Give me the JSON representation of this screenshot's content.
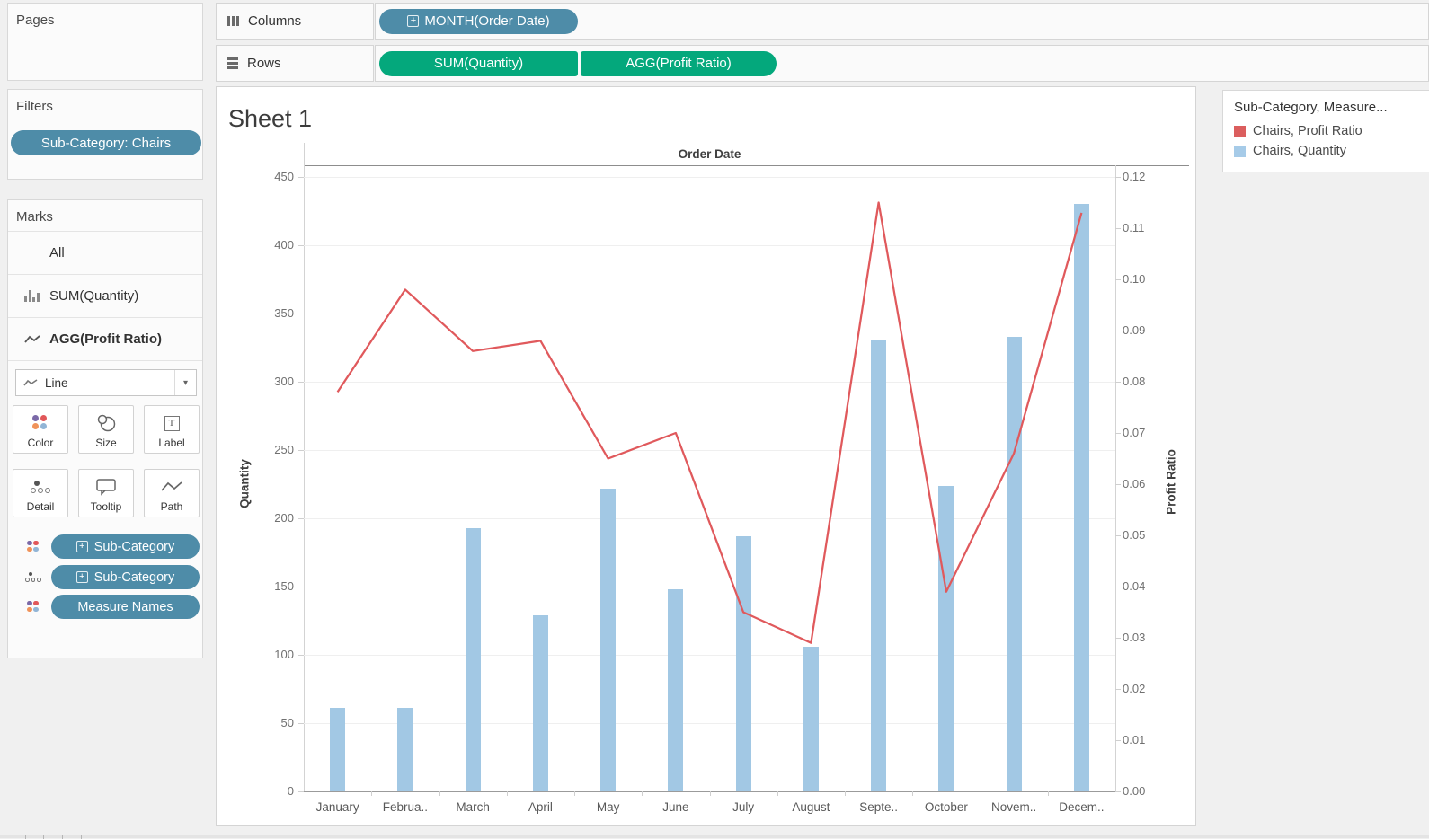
{
  "shelves": {
    "columns_label": "Columns",
    "rows_label": "Rows",
    "columns_pills": [
      {
        "label": "MONTH(Order Date)",
        "color": "#4E8CA8",
        "expandable": true
      }
    ],
    "rows_pills": [
      {
        "label": "SUM(Quantity)",
        "color": "#04A87C"
      },
      {
        "label": "AGG(Profit Ratio)",
        "color": "#04A87C"
      }
    ]
  },
  "sidebar": {
    "pages_title": "Pages",
    "filters_title": "Filters",
    "filter_pill": "Sub-Category: Chairs",
    "marks": {
      "title": "Marks",
      "rows": [
        {
          "label": "All",
          "icon": "none"
        },
        {
          "label": "SUM(Quantity)",
          "icon": "bar-chart-icon"
        },
        {
          "label": "AGG(Profit Ratio)",
          "icon": "line-chart-icon",
          "bold": true
        }
      ],
      "mark_type": "Line",
      "mark_type_icon": "line-chart-icon",
      "buttons": [
        "Color",
        "Size",
        "Label",
        "Detail",
        "Tooltip",
        "Path"
      ],
      "pills": [
        {
          "icon": "color-dots-icon",
          "label": "Sub-Category",
          "expandable": true
        },
        {
          "icon": "detail-dots-icon",
          "label": "Sub-Category",
          "expandable": true
        },
        {
          "icon": "color-dots-icon",
          "label": "Measure Names",
          "expandable": false
        }
      ]
    }
  },
  "sheet": {
    "title": "Sheet 1"
  },
  "chart_data": {
    "type": "bar+line dual-axis",
    "x_axis_title": "Order Date",
    "left_axis_title": "Quantity",
    "right_axis_title": "Profit Ratio",
    "categories": [
      "January",
      "February",
      "March",
      "April",
      "May",
      "June",
      "July",
      "August",
      "September",
      "October",
      "November",
      "December"
    ],
    "category_labels_shown": [
      "January",
      "Februa..",
      "March",
      "April",
      "May",
      "June",
      "July",
      "August",
      "Septe..",
      "October",
      "Novem..",
      "Decem.."
    ],
    "series": [
      {
        "name": "Chairs, Quantity",
        "type": "bar",
        "axis": "left",
        "color": "#A2C8E4",
        "values": [
          61,
          61,
          193,
          129,
          222,
          148,
          187,
          106,
          330,
          224,
          333,
          430
        ]
      },
      {
        "name": "Chairs, Profit Ratio",
        "type": "line",
        "axis": "right",
        "color": "#E0595C",
        "values": [
          0.078,
          0.098,
          0.086,
          0.088,
          0.065,
          0.07,
          0.035,
          0.029,
          0.115,
          0.039,
          0.066,
          0.113
        ]
      }
    ],
    "left_axis": {
      "min": 0,
      "max": 450,
      "tick_step": 50
    },
    "right_axis": {
      "min": 0,
      "max": 0.12,
      "tick_step": 0.01
    },
    "grid": true,
    "legend_position": "right"
  },
  "legend": {
    "title": "Sub-Category, Measure...",
    "items": [
      {
        "label": "Chairs, Profit Ratio",
        "color": "#DB5E5E"
      },
      {
        "label": "Chairs, Quantity",
        "color": "#A6CBE8"
      }
    ]
  }
}
